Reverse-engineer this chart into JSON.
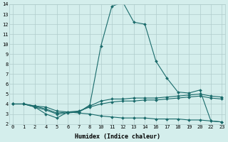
{
  "xlabel": "Humidex (Indice chaleur)",
  "background_color": "#d4eeec",
  "grid_color": "#b0cccc",
  "line_color": "#1a6b6b",
  "x_tick_labels": [
    "0",
    "1",
    "2",
    "4",
    "5",
    "6",
    "7",
    "8",
    "10",
    "11",
    "12",
    "13",
    "14",
    "16",
    "17",
    "18",
    "19",
    "20",
    "22",
    "23"
  ],
  "x_positions": [
    0,
    1,
    2,
    3,
    4,
    5,
    6,
    7,
    8,
    9,
    10,
    11,
    12,
    13,
    14,
    15,
    16,
    17,
    18,
    19
  ],
  "ylim": [
    2,
    14
  ],
  "xlim": [
    -0.3,
    19.3
  ],
  "yticks": [
    2,
    3,
    4,
    5,
    6,
    7,
    8,
    9,
    10,
    11,
    12,
    13,
    14
  ],
  "series": [
    {
      "x": [
        0,
        1,
        2,
        3,
        4,
        5,
        6,
        7,
        8,
        9,
        10,
        11,
        12,
        13,
        14,
        15,
        16,
        17,
        18,
        19
      ],
      "y": [
        4.0,
        4.0,
        3.7,
        3.0,
        2.6,
        3.2,
        3.2,
        3.9,
        9.8,
        13.8,
        14.2,
        12.2,
        12.0,
        8.3,
        6.6,
        5.2,
        5.1,
        5.4,
        2.3,
        2.2
      ]
    },
    {
      "x": [
        0,
        1,
        2,
        3,
        4,
        5,
        6,
        7,
        8,
        9,
        10,
        11,
        12,
        13,
        14,
        15,
        16,
        17,
        18,
        19
      ],
      "y": [
        4.0,
        4.0,
        3.7,
        3.4,
        3.0,
        3.1,
        3.2,
        3.8,
        4.3,
        4.5,
        4.5,
        4.6,
        4.6,
        4.6,
        4.7,
        4.8,
        4.9,
        5.0,
        4.8,
        4.7
      ]
    },
    {
      "x": [
        0,
        1,
        2,
        3,
        4,
        5,
        6,
        7,
        8,
        9,
        10,
        11,
        12,
        13,
        14,
        15,
        16,
        17,
        18,
        19
      ],
      "y": [
        4.0,
        4.0,
        3.8,
        3.5,
        3.1,
        3.2,
        3.3,
        3.7,
        4.0,
        4.2,
        4.3,
        4.3,
        4.4,
        4.4,
        4.5,
        4.6,
        4.7,
        4.8,
        4.6,
        4.5
      ]
    },
    {
      "x": [
        0,
        1,
        2,
        3,
        4,
        5,
        6,
        7,
        8,
        9,
        10,
        11,
        12,
        13,
        14,
        15,
        16,
        17,
        18,
        19
      ],
      "y": [
        4.0,
        4.0,
        3.8,
        3.7,
        3.3,
        3.2,
        3.1,
        3.0,
        2.8,
        2.7,
        2.6,
        2.6,
        2.6,
        2.5,
        2.5,
        2.5,
        2.4,
        2.4,
        2.3,
        2.2
      ]
    }
  ]
}
